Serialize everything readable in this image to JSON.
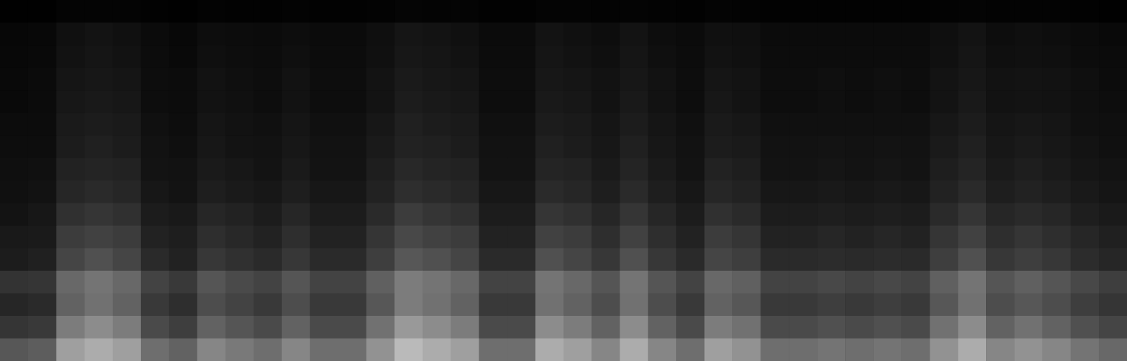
{
  "chart_data": {
    "type": "heatmap",
    "tick_labels": false,
    "color": "#ffffff",
    "clim": [
      0,
      100
    ],
    "cells": [
      [
        3,
        3,
        6,
        6,
        6,
        4,
        3,
        5,
        4,
        4,
        5,
        4,
        4,
        5,
        7,
        6,
        6,
        4,
        4,
        6,
        6,
        5,
        6,
        5,
        4,
        6,
        5,
        4,
        4,
        4,
        4,
        4,
        4,
        5,
        6,
        5,
        5,
        5,
        4,
        3
      ],
      [
        9,
        10,
        16,
        18,
        16,
        12,
        10,
        14,
        13,
        12,
        14,
        12,
        12,
        15,
        19,
        18,
        16,
        12,
        12,
        18,
        16,
        14,
        18,
        14,
        12,
        16,
        15,
        12,
        12,
        12,
        12,
        12,
        12,
        15,
        18,
        14,
        15,
        14,
        12,
        11
      ],
      [
        10,
        11,
        17,
        19,
        17,
        13,
        11,
        15,
        14,
        13,
        15,
        13,
        13,
        16,
        20,
        19,
        17,
        13,
        13,
        19,
        17,
        15,
        19,
        15,
        13,
        17,
        16,
        13,
        13,
        13,
        13,
        13,
        13,
        16,
        19,
        15,
        16,
        15,
        13,
        12
      ],
      [
        11,
        12,
        19,
        20,
        19,
        14,
        13,
        17,
        15,
        14,
        17,
        14,
        14,
        18,
        22,
        20,
        19,
        14,
        14,
        20,
        19,
        17,
        20,
        17,
        14,
        19,
        18,
        14,
        14,
        15,
        14,
        15,
        14,
        18,
        20,
        17,
        18,
        17,
        15,
        13
      ],
      [
        11,
        12,
        20,
        21,
        20,
        14,
        13,
        17,
        16,
        14,
        17,
        14,
        14,
        18,
        23,
        21,
        20,
        14,
        14,
        21,
        20,
        17,
        21,
        17,
        14,
        20,
        18,
        14,
        14,
        15,
        14,
        15,
        14,
        18,
        21,
        17,
        18,
        17,
        15,
        14
      ],
      [
        13,
        13,
        22,
        23,
        22,
        16,
        14,
        19,
        17,
        16,
        19,
        16,
        16,
        20,
        25,
        23,
        22,
        16,
        16,
        23,
        22,
        19,
        23,
        19,
        16,
        22,
        20,
        16,
        16,
        16,
        16,
        16,
        16,
        20,
        23,
        19,
        20,
        19,
        16,
        15
      ],
      [
        14,
        14,
        23,
        25,
        23,
        17,
        15,
        20,
        18,
        17,
        20,
        17,
        17,
        22,
        26,
        25,
        23,
        17,
        17,
        25,
        23,
        20,
        25,
        20,
        17,
        23,
        22,
        17,
        17,
        18,
        17,
        18,
        17,
        22,
        25,
        20,
        22,
        20,
        18,
        16
      ],
      [
        15,
        16,
        26,
        27,
        26,
        18,
        17,
        22,
        20,
        18,
        22,
        18,
        18,
        24,
        29,
        27,
        26,
        18,
        18,
        27,
        26,
        22,
        27,
        22,
        18,
        26,
        24,
        18,
        18,
        19,
        18,
        19,
        18,
        24,
        27,
        22,
        24,
        22,
        19,
        18
      ],
      [
        16,
        17,
        28,
        30,
        28,
        20,
        18,
        24,
        22,
        20,
        24,
        20,
        20,
        26,
        32,
        30,
        28,
        20,
        20,
        30,
        28,
        24,
        30,
        24,
        20,
        28,
        26,
        20,
        20,
        21,
        20,
        21,
        20,
        26,
        30,
        24,
        26,
        24,
        21,
        19
      ],
      [
        18,
        20,
        33,
        35,
        33,
        23,
        21,
        28,
        26,
        23,
        28,
        23,
        23,
        30,
        38,
        35,
        33,
        23,
        23,
        35,
        33,
        28,
        35,
        28,
        23,
        33,
        30,
        23,
        23,
        24,
        23,
        24,
        23,
        30,
        35,
        28,
        30,
        28,
        24,
        22
      ],
      [
        21,
        22,
        38,
        40,
        38,
        26,
        24,
        32,
        29,
        26,
        32,
        26,
        26,
        35,
        43,
        40,
        38,
        26,
        26,
        40,
        38,
        32,
        40,
        32,
        26,
        38,
        35,
        26,
        26,
        28,
        26,
        28,
        26,
        35,
        40,
        32,
        35,
        32,
        28,
        25
      ],
      [
        23,
        25,
        42,
        46,
        42,
        30,
        26,
        36,
        33,
        30,
        36,
        30,
        30,
        39,
        49,
        46,
        42,
        30,
        30,
        46,
        42,
        36,
        46,
        36,
        30,
        42,
        39,
        30,
        30,
        31,
        30,
        31,
        30,
        39,
        46,
        36,
        39,
        36,
        31,
        28
      ],
      [
        34,
        35,
        55,
        59,
        55,
        41,
        37,
        48,
        44,
        41,
        48,
        41,
        41,
        52,
        62,
        59,
        55,
        41,
        41,
        59,
        55,
        48,
        59,
        48,
        41,
        55,
        52,
        41,
        41,
        43,
        41,
        43,
        41,
        52,
        59,
        48,
        52,
        48,
        43,
        39
      ],
      [
        28,
        30,
        53,
        58,
        53,
        37,
        32,
        45,
        41,
        37,
        45,
        37,
        37,
        49,
        62,
        58,
        53,
        37,
        37,
        58,
        53,
        45,
        58,
        45,
        37,
        53,
        49,
        37,
        37,
        39,
        37,
        39,
        37,
        49,
        58,
        45,
        49,
        45,
        39,
        35
      ],
      [
        35,
        37,
        62,
        67,
        62,
        44,
        39,
        53,
        48,
        44,
        53,
        44,
        44,
        58,
        71,
        67,
        62,
        44,
        44,
        67,
        62,
        53,
        67,
        53,
        44,
        62,
        58,
        44,
        44,
        46,
        44,
        46,
        44,
        58,
        67,
        53,
        58,
        53,
        46,
        42
      ],
      [
        49,
        51,
        73,
        77,
        73,
        57,
        53,
        65,
        61,
        57,
        65,
        57,
        57,
        69,
        81,
        77,
        73,
        57,
        57,
        77,
        73,
        65,
        77,
        65,
        57,
        73,
        69,
        57,
        57,
        59,
        57,
        59,
        57,
        69,
        77,
        65,
        69,
        65,
        59,
        55
      ]
    ]
  }
}
